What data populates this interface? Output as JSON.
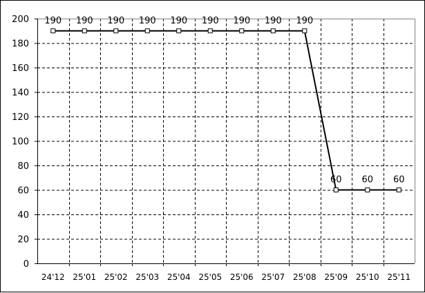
{
  "chart_data": {
    "type": "line",
    "categories": [
      "24'12",
      "25'01",
      "25'02",
      "25'03",
      "25'04",
      "25'05",
      "25'06",
      "25'07",
      "25'08",
      "25'09",
      "25'10",
      "25'11"
    ],
    "series": [
      {
        "values": [
          190,
          190,
          190,
          190,
          190,
          190,
          190,
          190,
          190,
          60,
          60,
          60
        ],
        "color": "#000000",
        "marker": "square"
      }
    ],
    "data_labels": [
      "190",
      "190",
      "190",
      "190",
      "190",
      "190",
      "190",
      "190",
      "190",
      "60",
      "60",
      "60"
    ],
    "ylim": [
      0,
      200
    ],
    "yticks": [
      0,
      20,
      40,
      60,
      80,
      100,
      120,
      140,
      160,
      180,
      200
    ],
    "ytick_labels": [
      "0",
      "20",
      "40",
      "60",
      "80",
      "100",
      "120",
      "140",
      "160",
      "180",
      "200"
    ],
    "grid": true,
    "grid_style": "dashed",
    "title": "",
    "xlabel": "",
    "ylabel": ""
  }
}
